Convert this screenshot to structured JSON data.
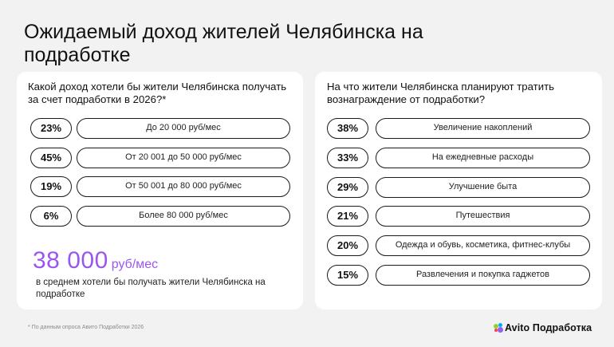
{
  "title": "Ожидаемый доход жителей Челябинска на подработке",
  "left_card": {
    "question": "Какой доход хотели бы жители Челябинска получать за счет подработки в 2026?*",
    "summary_value": "38 000",
    "summary_unit": "руб/мес",
    "summary_caption": "в среднем хотели бы получать жители Челябинска на подработке"
  },
  "right_card": {
    "question": "На что жители Челябинска планируют тратить вознаграждение от подработки?"
  },
  "chart_data": [
    {
      "type": "table",
      "categories": [
        "До 20 000 руб/мес",
        "От 20 001 до 50 000 руб/мес",
        "От 50 001 до 80 000 руб/мес",
        "Более 80 000  руб/мес"
      ],
      "values": [
        23,
        45,
        19,
        6
      ],
      "labels": [
        "23%",
        "45%",
        "19%",
        "6%"
      ]
    },
    {
      "type": "table",
      "categories": [
        "Увеличение накоплений",
        "На ежедневные расходы",
        "Улучшение быта",
        "Путешествия",
        "Одежда и обувь, косметика, фитнес-клубы",
        "Развлечения и покупка гаджетов"
      ],
      "values": [
        38,
        33,
        29,
        21,
        20,
        15
      ],
      "labels": [
        "38%",
        "33%",
        "29%",
        "21%",
        "20%",
        "15%"
      ]
    }
  ],
  "footnote": "* По данным опроса Авито Подработки 2026",
  "brand": {
    "name": "Avito Подработка",
    "dot_colors": [
      "#97cf26",
      "#0af",
      "#ff4053",
      "#965eeb"
    ]
  },
  "colors": {
    "accent": "#9a57f0",
    "background": "#f2f2f3",
    "card": "#ffffff"
  }
}
